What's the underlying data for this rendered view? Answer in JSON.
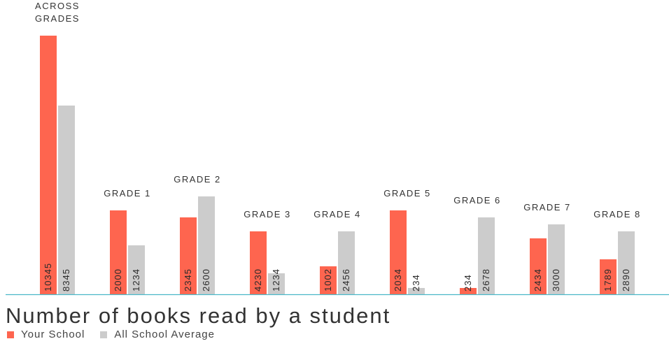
{
  "chart_data": {
    "type": "bar",
    "title": "Number of books read by a student",
    "categories": [
      [
        "ACROSS",
        "GRADES"
      ],
      "GRADE 1",
      "GRADE 2",
      "GRADE 3",
      "GRADE 4",
      "GRADE 5",
      "GRADE 6",
      "GRADE 7",
      "GRADE 8"
    ],
    "series": [
      {
        "name": "Your School",
        "color": "#fe654f",
        "values": [
          10345,
          2000,
          2345,
          4230,
          1002,
          2034,
          234,
          2434,
          1789
        ],
        "approx_heights": [
          3700,
          1200,
          1100,
          900,
          400,
          1200,
          90,
          800,
          500
        ]
      },
      {
        "name": "All School Average",
        "color": "#cccccc",
        "values": [
          8345,
          1234,
          2600,
          1234,
          2456,
          234,
          2678,
          3000,
          2890
        ],
        "approx_heights": [
          2700,
          700,
          1400,
          300,
          900,
          90,
          1100,
          1000,
          900
        ]
      }
    ],
    "axis_color": "#4ab8c8",
    "legend": "bottom-left",
    "grid": false
  }
}
